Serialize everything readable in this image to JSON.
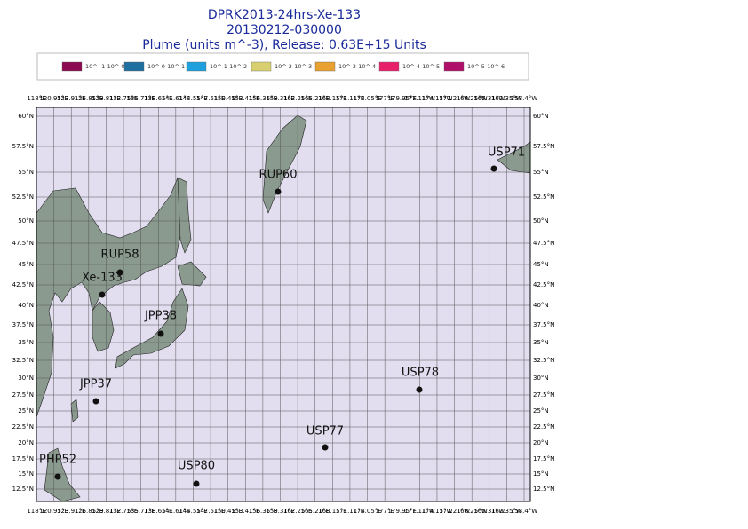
{
  "header": {
    "title": "DPRK2013-24hrs-Xe-133",
    "date": "20130212-030000",
    "subtitle": "Plume (units m^-3), Release:  0.63E+15 Units"
  },
  "legend": [
    {
      "label": "10^ -1-10^ 0",
      "color": "#8b0a50"
    },
    {
      "label": "10^ 0-10^ 1",
      "color": "#1e6ea0"
    },
    {
      "label": "10^ 1-10^ 2",
      "color": "#1ea0dc"
    },
    {
      "label": "10^ 2-10^ 3",
      "color": "#d8d070"
    },
    {
      "label": "10^ 3-10^ 4",
      "color": "#e8a030"
    },
    {
      "label": "10^ 4-10^ 5",
      "color": "#e8206a"
    },
    {
      "label": "10^ 5-10^ 6",
      "color": "#b0106a"
    }
  ],
  "map": {
    "lat_labels": [
      "60°N",
      "57.5°N",
      "55°N",
      "52.5°N",
      "50°N",
      "47.5°N",
      "45°N",
      "42.5°N",
      "40°N",
      "37.5°N",
      "35°N",
      "32.5°N",
      "30°N",
      "27.5°N",
      "25°N",
      "22.5°N",
      "20°N",
      "17.5°N",
      "15°N",
      "12.5°N"
    ],
    "lon_labels": [
      "118°E",
      "120.95°E",
      "123.91°E",
      "126.85°E",
      "129.81°E",
      "132.75°E",
      "135.71°E",
      "138.65°E",
      "141.61°E",
      "144.55°E",
      "147.51°E",
      "150.45°E",
      "153.41°E",
      "156.35°E",
      "159.31°E",
      "162.25°E",
      "165.21°E",
      "168.15°E",
      "171.11°E",
      "174.05°E",
      "177°E",
      "179.95°E",
      "177.11°W",
      "174.15°W",
      "171.21°W",
      "168.25°W",
      "165.31°W",
      "162.35°W",
      "158.4°W"
    ],
    "stations": [
      {
        "name": "USP71"
      },
      {
        "name": "RUP60"
      },
      {
        "name": "RUP58"
      },
      {
        "name": "Xe-133"
      },
      {
        "name": "JPP38"
      },
      {
        "name": "JPP37"
      },
      {
        "name": "USP78"
      },
      {
        "name": "USP77"
      },
      {
        "name": "USP80"
      },
      {
        "name": "PHP52"
      }
    ]
  }
}
